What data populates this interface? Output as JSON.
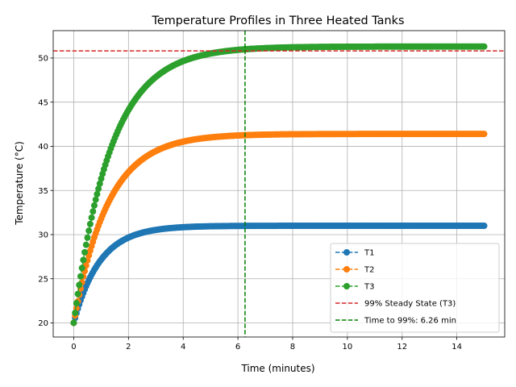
{
  "chart_data": {
    "type": "line",
    "title": "Temperature Profiles in Three Heated Tanks",
    "xlabel": "Time (minutes)",
    "ylabel": "Temperature (°C)",
    "xlim": [
      -0.75,
      15.75
    ],
    "ylim": [
      18.4,
      53.1
    ],
    "xticks": [
      0,
      2,
      4,
      6,
      8,
      10,
      12,
      14
    ],
    "yticks": [
      20,
      25,
      30,
      35,
      40,
      45,
      50
    ],
    "grid": true,
    "legend_position": "lower-right",
    "time_range": [
      0,
      15
    ],
    "sample_count": 300,
    "series": [
      {
        "name": "T1",
        "color": "#1f77b4",
        "marker": "circle",
        "linestyle": "dashed",
        "start": 20.0,
        "steady": 31.0,
        "time_constant": 0.95
      },
      {
        "name": "T2",
        "color": "#ff7f0e",
        "marker": "circle",
        "linestyle": "dashed",
        "start": 20.0,
        "steady": 41.4,
        "time_constant": 1.25
      },
      {
        "name": "T3",
        "color": "#2ca02c",
        "marker": "circle",
        "linestyle": "dashed",
        "start": 20.0,
        "steady": 51.3,
        "time_constant": 1.36
      }
    ],
    "reference_lines": [
      {
        "name": "99% Steady State (T3)",
        "orientation": "horizontal",
        "value": 50.8,
        "color": "#d62728",
        "linestyle": "dashed"
      },
      {
        "name": "Time to 99%: 6.26 min",
        "orientation": "vertical",
        "value": 6.26,
        "color": "#008000",
        "linestyle": "dashed"
      }
    ]
  }
}
